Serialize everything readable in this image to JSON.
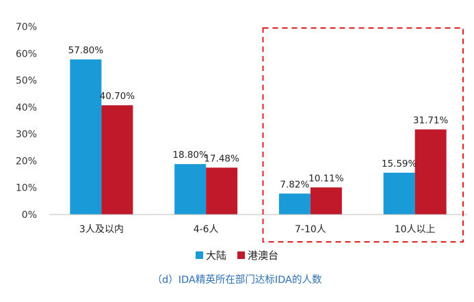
{
  "chart_data": {
    "type": "bar",
    "categories": [
      "3人及以内",
      "4-6人",
      "7-10人",
      "10人以上"
    ],
    "series": [
      {
        "name": "大陆",
        "values": [
          57.8,
          18.8,
          7.82,
          15.59
        ],
        "labels": [
          "57.80%",
          "18.80%",
          "7.82%",
          "15.59%"
        ],
        "color": "#1a9bd7"
      },
      {
        "name": "港澳台",
        "values": [
          40.7,
          17.48,
          10.11,
          31.71
        ],
        "labels": [
          "40.70%",
          "17.48%",
          "10.11%",
          "31.71%"
        ],
        "color": "#c0192a"
      }
    ],
    "y_ticks": [
      "0%",
      "10%",
      "20%",
      "30%",
      "40%",
      "50%",
      "60%",
      "70%"
    ],
    "ylim": [
      0,
      70
    ],
    "grid": false,
    "legend_position": "bottom",
    "highlight": {
      "categories": [
        "7-10人",
        "10人以上"
      ],
      "style": "dashed-box",
      "color": "#e02020"
    },
    "caption": "（d）IDA精英所在部门达标IDA的人数",
    "caption_color": "#2e6fb5"
  }
}
